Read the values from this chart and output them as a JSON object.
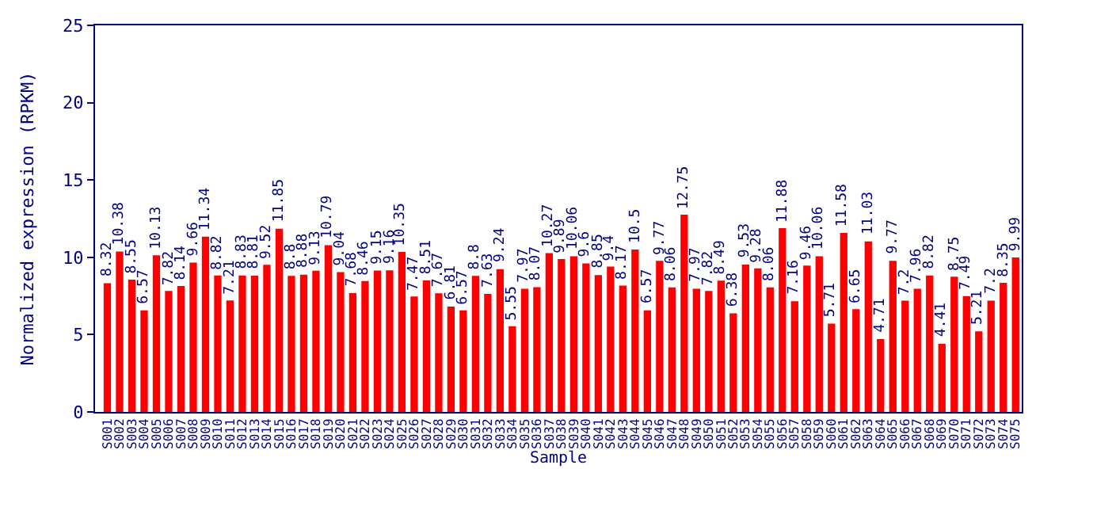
{
  "chart_data": {
    "type": "bar",
    "xlabel": "Sample",
    "ylabel": "Normalized expression (RPKM)",
    "categories": [
      "S001",
      "S002",
      "S003",
      "S004",
      "S005",
      "S006",
      "S007",
      "S008",
      "S009",
      "S010",
      "S011",
      "S012",
      "S013",
      "S014",
      "S015",
      "S016",
      "S017",
      "S018",
      "S019",
      "S020",
      "S021",
      "S022",
      "S023",
      "S024",
      "S025",
      "S026",
      "S027",
      "S028",
      "S029",
      "S030",
      "S031",
      "S032",
      "S033",
      "S034",
      "S035",
      "S036",
      "S037",
      "S038",
      "S039",
      "S040",
      "S041",
      "S042",
      "S043",
      "S044",
      "S045",
      "S046",
      "S047",
      "S048",
      "S049",
      "S050",
      "S051",
      "S052",
      "S053",
      "S054",
      "S055",
      "S056",
      "S057",
      "S058",
      "S059",
      "S060",
      "S061",
      "S062",
      "S063",
      "S064",
      "S065",
      "S066",
      "S067",
      "S068",
      "S069",
      "S070",
      "S071",
      "S072",
      "S073",
      "S074",
      "S075"
    ],
    "values": [
      8.32,
      10.38,
      8.55,
      6.57,
      10.13,
      7.82,
      8.14,
      9.66,
      11.34,
      8.82,
      7.21,
      8.83,
      8.81,
      9.52,
      11.85,
      8.8,
      8.88,
      9.13,
      10.79,
      9.04,
      7.68,
      8.46,
      9.15,
      9.16,
      10.35,
      7.47,
      8.51,
      7.67,
      6.81,
      6.57,
      8.8,
      7.63,
      9.24,
      5.55,
      7.97,
      8.07,
      10.27,
      9.89,
      10.06,
      9.6,
      8.85,
      9.4,
      8.17,
      10.5,
      6.57,
      9.77,
      8.06,
      12.75,
      7.97,
      7.82,
      8.49,
      6.38,
      9.53,
      9.28,
      8.06,
      11.88,
      7.16,
      9.46,
      10.06,
      5.71,
      11.58,
      6.65,
      11.03,
      4.71,
      9.77,
      7.2,
      7.96,
      8.82,
      4.41,
      8.75,
      7.49,
      5.21,
      7.2,
      8.35,
      9.99
    ],
    "color": "#ff0000",
    "data_labels": true,
    "ylim": [
      0,
      25
    ],
    "yticks": [
      0,
      5,
      10,
      15,
      20,
      25
    ]
  }
}
